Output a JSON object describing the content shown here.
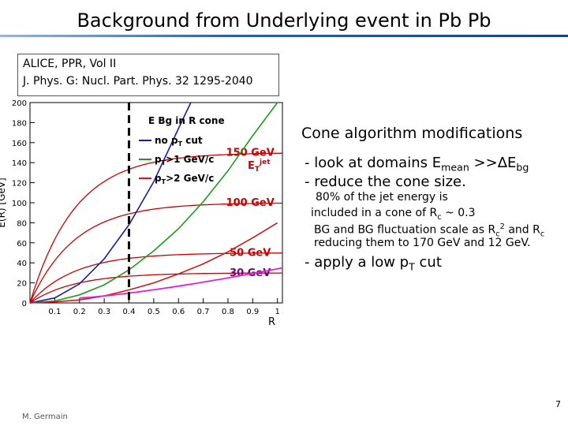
{
  "slide": {
    "title": "Background from Underlying event in Pb Pb",
    "reference_line1": "ALICE, PPR, Vol II",
    "reference_line2": "J. Phys. G: Nucl. Part. Phys. 32 1295-2040",
    "footer_author": "M. Germain",
    "page_number": "7"
  },
  "side_text": {
    "heading": "Cone algorithm modifications",
    "bullet1_prefix": "- look at domains E",
    "bullet1_sub1": "mean",
    "bullet1_mid": " >>ΔE",
    "bullet1_sub2": "bg",
    "bullet2": "- reduce the cone size.",
    "detail1_line1": "80% of the jet energy is",
    "detail1_line2_prefix": "included in a cone of R",
    "detail1_line2_sub": "c",
    "detail1_line2_suffix": " ~ 0.3",
    "detail2_line1_prefix": "BG and BG fluctuation scale as R",
    "detail2_line1_sub": "c",
    "detail2_line1_sup": "2",
    "detail2_line1_suffix": " and R",
    "detail2_line1_sub2": "c",
    "detail2_line2": "reducing them to 170 GeV and 12 GeV.",
    "bullet3_prefix": "- apply a low p",
    "bullet3_sub": "T",
    "bullet3_suffix": " cut"
  },
  "colors": {
    "no_cut": "#1a1aa6",
    "pt1": "#1e9a1e",
    "pt2": "#d01818",
    "red_text": "#cc0000",
    "magenta": "#e020e0"
  },
  "chart_data": {
    "type": "line",
    "ylabel": "E(R) [GeV]",
    "xlabel": "R",
    "xlim": [
      0,
      1.02
    ],
    "ylim": [
      0,
      200
    ],
    "x_ticks": [
      0.1,
      0.2,
      0.3,
      0.4,
      0.5,
      0.6,
      0.7,
      0.8,
      0.9,
      1
    ],
    "y_ticks": [
      0,
      20,
      40,
      60,
      80,
      100,
      120,
      140,
      160,
      180,
      200
    ],
    "legend_title": "E Bg in R cone",
    "legend": [
      {
        "label_prefix": "no p",
        "label_sub": "T",
        "label_suffix": " cut",
        "color_key": "no_cut"
      },
      {
        "label_prefix": "p",
        "label_sub": "T",
        "label_suffix": ">1 GeV/c",
        "color_key": "pt1"
      },
      {
        "label_prefix": "p",
        "label_sub": "T",
        "label_suffix": ">2 GeV/c",
        "color_key": "pt2"
      }
    ],
    "series": [
      {
        "color_key": "no_cut",
        "x": [
          0,
          0.1,
          0.2,
          0.3,
          0.4,
          0.5,
          0.6,
          0.65
        ],
        "y": [
          0,
          5,
          19,
          44,
          78,
          121,
          174,
          205
        ]
      },
      {
        "color_key": "pt1",
        "x": [
          0,
          0.1,
          0.2,
          0.3,
          0.4,
          0.5,
          0.6,
          0.7,
          0.8,
          0.9,
          1.0
        ],
        "y": [
          0,
          2,
          8,
          18,
          33,
          52,
          74,
          101,
          132,
          167,
          205
        ]
      },
      {
        "color_key": "pt2",
        "x": [
          0,
          0.1,
          0.2,
          0.3,
          0.4,
          0.5,
          0.6,
          0.7,
          0.8,
          0.9,
          1.0
        ],
        "y": [
          0,
          1,
          3,
          7,
          13,
          20,
          29,
          39,
          51,
          65,
          80
        ]
      }
    ],
    "reference_lines": [
      {
        "label": "150 GeV",
        "value": 150
      },
      {
        "label": "100 GeV",
        "value": 100
      },
      {
        "label": "50 GeV",
        "value": 50
      },
      {
        "label": "30 GeV",
        "value": 30
      }
    ],
    "vertical_marker": 0.4,
    "annotation_prefix": "E",
    "annotation_sub": "T",
    "annotation_sup": "jet"
  }
}
